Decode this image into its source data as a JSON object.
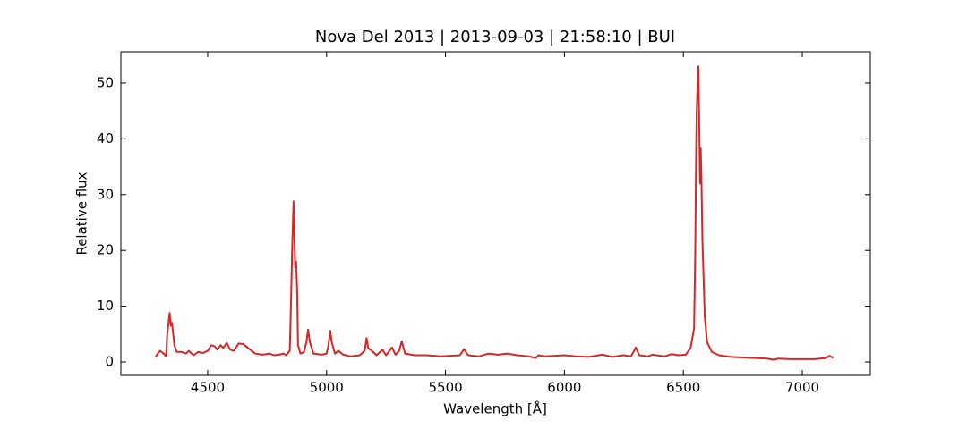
{
  "chart_data": {
    "type": "line",
    "title": "Nova Del 2013 | 2013-09-03 | 21:58:10 | BUI",
    "xlabel": "Wavelength [Å]",
    "ylabel": "Relative flux",
    "color": "#d62728",
    "x": [
      4280,
      4290,
      4300,
      4315,
      4325,
      4330,
      4340,
      4345,
      4350,
      4360,
      4370,
      4390,
      4410,
      4420,
      4440,
      4460,
      4480,
      4500,
      4515,
      4530,
      4540,
      4555,
      4565,
      4580,
      4595,
      4610,
      4630,
      4650,
      4670,
      4700,
      4730,
      4760,
      4780,
      4800,
      4820,
      4830,
      4845,
      4850,
      4855,
      4861,
      4865,
      4868,
      4872,
      4876,
      4880,
      4890,
      4905,
      4915,
      4922,
      4930,
      4945,
      4980,
      5000,
      5008,
      5015,
      5022,
      5035,
      5050,
      5070,
      5100,
      5140,
      5160,
      5168,
      5175,
      5190,
      5210,
      5235,
      5250,
      5275,
      5290,
      5305,
      5316,
      5330,
      5370,
      5420,
      5480,
      5520,
      5560,
      5578,
      5595,
      5640,
      5680,
      5720,
      5760,
      5800,
      5850,
      5880,
      5890,
      5920,
      6000,
      6050,
      6100,
      6160,
      6200,
      6250,
      6280,
      6300,
      6315,
      6350,
      6370,
      6420,
      6450,
      6480,
      6510,
      6530,
      6545,
      6550,
      6553,
      6556,
      6560,
      6563,
      6566,
      6570,
      6573,
      6576,
      6580,
      6590,
      6600,
      6620,
      6650,
      6700,
      6750,
      6800,
      6850,
      6880,
      6900,
      6950,
      7000,
      7050,
      7100,
      7115,
      7130
    ],
    "values": [
      0.8,
      1.5,
      2.0,
      1.5,
      1.0,
      5,
      8.8,
      6.5,
      7,
      3,
      1.8,
      1.8,
      1.5,
      2.0,
      1.2,
      1.8,
      1.6,
      2.0,
      3.0,
      2.8,
      2.2,
      3.0,
      2.5,
      3.4,
      2.2,
      2.0,
      3.3,
      3.2,
      2.5,
      1.5,
      1.3,
      1.5,
      1.2,
      1.3,
      1.5,
      1.2,
      2,
      10,
      20,
      28.8,
      22,
      17,
      18,
      13,
      3,
      1.5,
      1.8,
      3.5,
      5.8,
      3.5,
      1.5,
      1.3,
      1.5,
      3.0,
      5.6,
      3.5,
      1.5,
      2.0,
      1.3,
      1.0,
      1.2,
      2.0,
      4.3,
      2.5,
      2.0,
      1.2,
      2.2,
      1.2,
      2.6,
      1.3,
      2.0,
      3.7,
      1.5,
      1.2,
      1.2,
      1.0,
      1.1,
      1.2,
      2.3,
      1.2,
      1.0,
      1.5,
      1.3,
      1.5,
      1.2,
      1.0,
      0.7,
      1.2,
      1.0,
      1.2,
      1.0,
      0.9,
      1.3,
      0.9,
      1.2,
      1.0,
      2.6,
      1.2,
      1.0,
      1.3,
      1.0,
      1.4,
      1.2,
      1.3,
      2.5,
      6,
      20,
      35,
      45,
      50,
      53,
      45,
      32,
      38.3,
      33,
      22,
      8,
      3.5,
      1.8,
      1.2,
      0.9,
      0.8,
      0.7,
      0.6,
      0.4,
      0.6,
      0.5,
      0.5,
      0.5,
      0.7,
      1.1,
      0.7
    ],
    "xlim": [
      4135,
      7286
    ],
    "ylim": [
      -2.4,
      55.6
    ],
    "xticks": [
      4500,
      5000,
      5500,
      6000,
      6500,
      7000
    ],
    "yticks": [
      0,
      10,
      20,
      30,
      40,
      50
    ]
  }
}
